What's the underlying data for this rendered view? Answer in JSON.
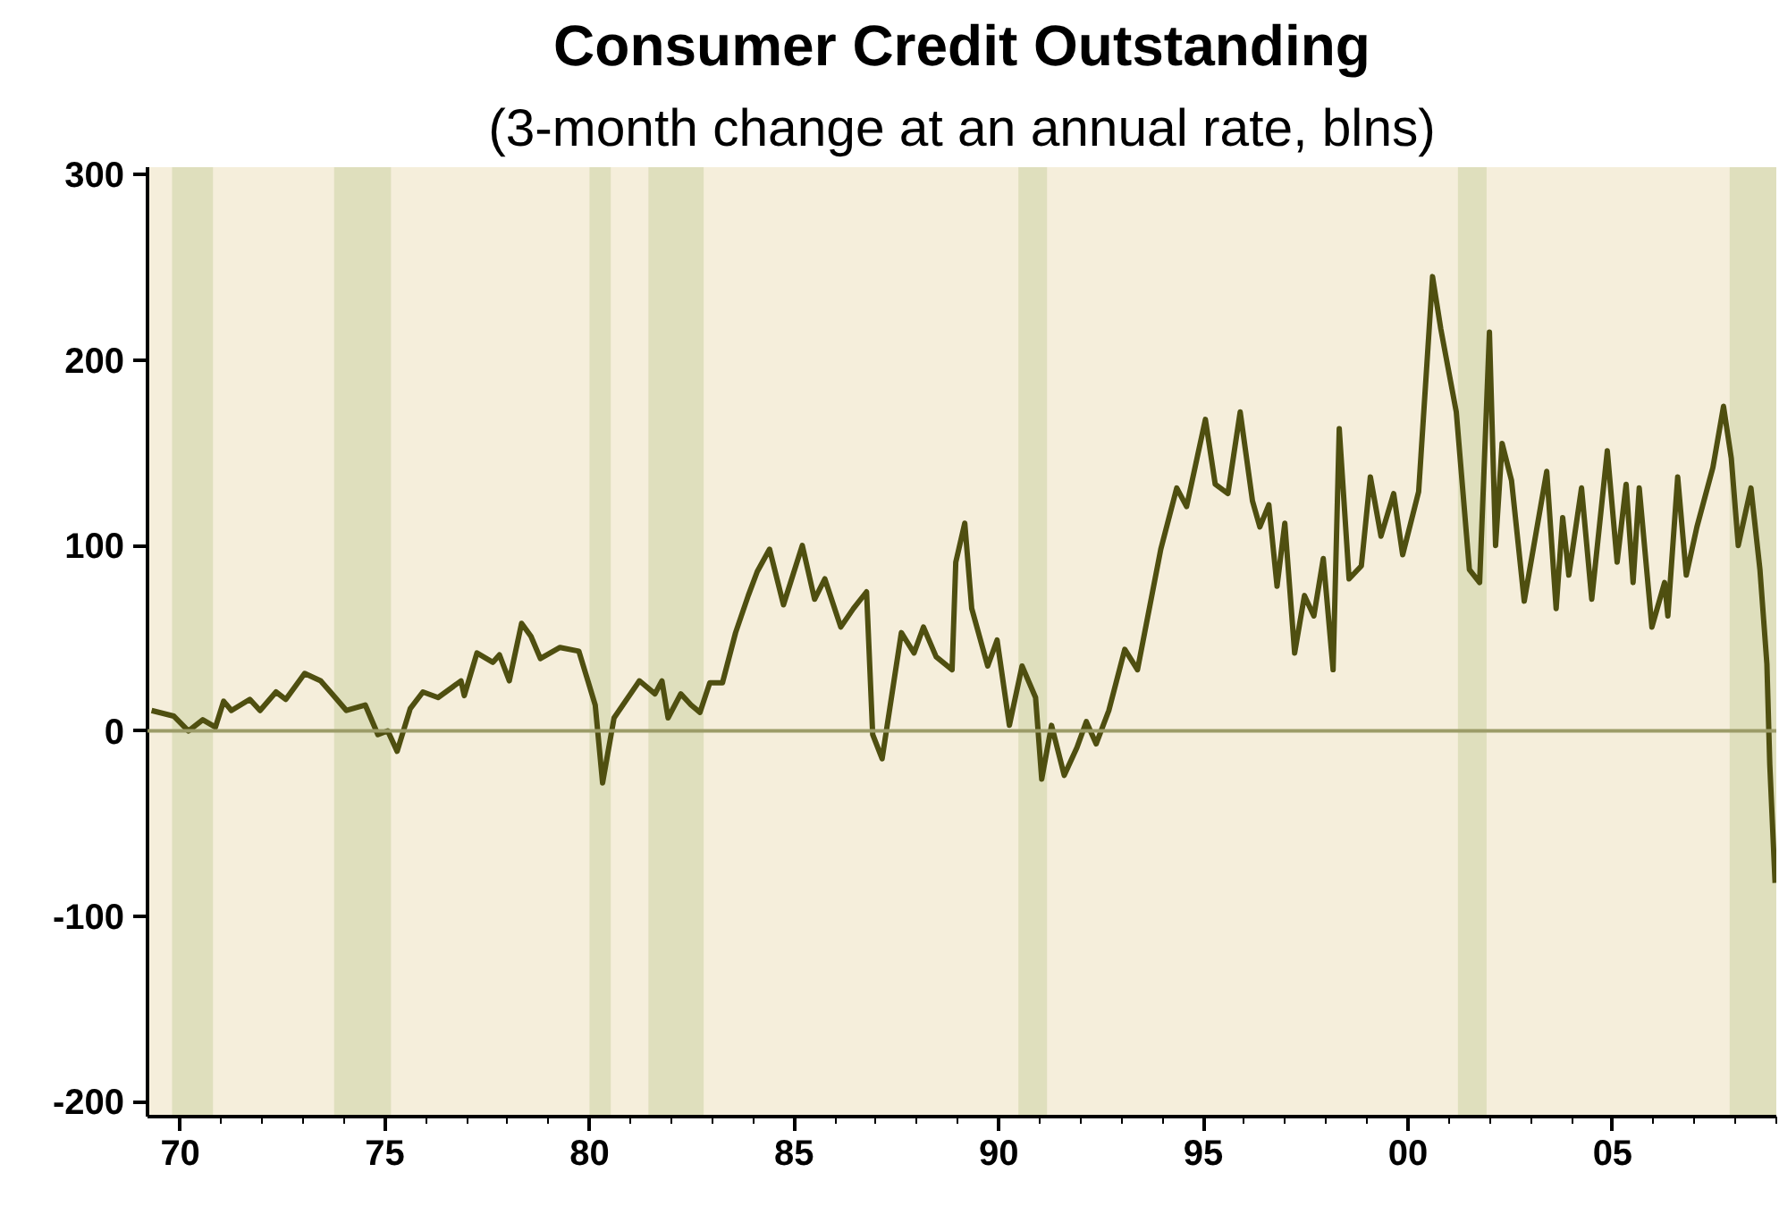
{
  "chart_data": {
    "type": "line",
    "title": "Consumer Credit Outstanding",
    "subtitle": "(3-month change at an annual rate, blns)",
    "x": [
      1969.3,
      1969.84,
      1970.2,
      1970.55,
      1970.86,
      1971.06,
      1971.25,
      1971.7,
      1971.95,
      1972.34,
      1972.58,
      1973.04,
      1973.43,
      1973.67,
      1974.06,
      1974.52,
      1974.83,
      1975.07,
      1975.3,
      1975.62,
      1975.93,
      1976.3,
      1976.86,
      1976.94,
      1977.25,
      1977.64,
      1977.8,
      1978.04,
      1978.34,
      1978.57,
      1978.8,
      1979.28,
      1979.74,
      1980.14,
      1980.32,
      1980.6,
      1981.22,
      1981.6,
      1981.77,
      1981.92,
      1982.23,
      1982.48,
      1982.7,
      1982.94,
      1983.25,
      1983.57,
      1983.88,
      1984.1,
      1984.4,
      1984.74,
      1985.2,
      1985.5,
      1985.75,
      1986.14,
      1986.45,
      1986.77,
      1986.92,
      1987.15,
      1987.62,
      1987.93,
      1988.16,
      1988.47,
      1988.86,
      1988.95,
      1989.17,
      1989.34,
      1989.73,
      1989.96,
      1990.26,
      1990.57,
      1990.9,
      1991.05,
      1991.29,
      1991.6,
      1991.91,
      1992.14,
      1992.38,
      1992.69,
      1993.08,
      1993.39,
      1993.96,
      1994.35,
      1994.59,
      1995.05,
      1995.29,
      1995.6,
      1995.9,
      1996.2,
      1996.38,
      1996.6,
      1996.8,
      1996.99,
      1997.23,
      1997.47,
      1997.7,
      1997.93,
      1998.17,
      1998.32,
      1998.56,
      1998.86,
      1999.08,
      1999.34,
      1999.65,
      1999.87,
      2000.26,
      2000.6,
      2000.8,
      2001.18,
      2001.5,
      2001.75,
      2001.99,
      2002.14,
      2002.3,
      2002.53,
      2002.84,
      2003.39,
      2003.62,
      2003.78,
      2003.93,
      2004.24,
      2004.49,
      2004.87,
      2005.11,
      2005.33,
      2005.5,
      2005.65,
      2005.96,
      2006.27,
      2006.35,
      2006.59,
      2006.8,
      2007.06,
      2007.45,
      2007.71,
      2007.9,
      2008.07,
      2008.38,
      2008.6,
      2008.77,
      2008.84,
      2008.97
    ],
    "series": [
      {
        "color": "#4f4f10",
        "values": [
          11,
          8,
          0,
          6,
          2,
          16,
          11,
          17,
          11,
          21,
          17,
          31,
          27,
          21,
          11,
          14,
          -2,
          0,
          -11,
          12,
          21,
          18,
          27,
          19,
          42,
          37,
          41,
          27,
          58,
          51,
          39,
          45,
          43,
          14,
          -28,
          7,
          27,
          20,
          27,
          7,
          20,
          14,
          10,
          26,
          26,
          53,
          73,
          86,
          98,
          68,
          100,
          71,
          82,
          56,
          66,
          75,
          -2,
          -15,
          53,
          42,
          56,
          40,
          33,
          91,
          112,
          66,
          35,
          49,
          3,
          35,
          18,
          -26,
          3,
          -24,
          -9,
          5,
          -7,
          11,
          44,
          33,
          98,
          131,
          121,
          168,
          133,
          128,
          172,
          124,
          110,
          122,
          78,
          112,
          42,
          73,
          62,
          93,
          33,
          163,
          82,
          89,
          137,
          105,
          128,
          95,
          129,
          245,
          217,
          172,
          87,
          80,
          215,
          100,
          155,
          135,
          70,
          140,
          66,
          115,
          84,
          131,
          71,
          151,
          91,
          133,
          80,
          131,
          56,
          80,
          62,
          137,
          84,
          110,
          142,
          175,
          147,
          100,
          131,
          87,
          36,
          -18,
          -82
        ]
      }
    ],
    "xlim": [
      1969.2,
      2009.0
    ],
    "ylim": [
      -208,
      304
    ],
    "xticks": [
      {
        "value": 1970,
        "label": "70"
      },
      {
        "value": 1975,
        "label": "75"
      },
      {
        "value": 1980,
        "label": "80"
      },
      {
        "value": 1985,
        "label": "85"
      },
      {
        "value": 1990,
        "label": "90"
      },
      {
        "value": 1995,
        "label": "95"
      },
      {
        "value": 2000,
        "label": "00"
      },
      {
        "value": 2005,
        "label": "05"
      }
    ],
    "yticks": [
      -200,
      -100,
      0,
      100,
      200,
      300
    ],
    "ref_lines": [
      {
        "axis": "y",
        "value": 0,
        "color": "#9c9c68"
      }
    ],
    "bands": [
      {
        "axis": "x",
        "from": 1969.8,
        "to": 1970.8,
        "color": "#dfdfbd"
      },
      {
        "axis": "x",
        "from": 1973.76,
        "to": 1975.15,
        "color": "#dfdfbd"
      },
      {
        "axis": "x",
        "from": 1980.0,
        "to": 1980.52,
        "color": "#dfdfbd"
      },
      {
        "axis": "x",
        "from": 1981.44,
        "to": 1982.79,
        "color": "#dfdfbd"
      },
      {
        "axis": "x",
        "from": 1990.48,
        "to": 1991.18,
        "color": "#dfdfbd"
      },
      {
        "axis": "x",
        "from": 2001.22,
        "to": 2001.92,
        "color": "#dfdfbd"
      },
      {
        "axis": "x",
        "from": 2007.86,
        "to": 2009.0,
        "color": "#dfdfbd"
      }
    ],
    "grid": false,
    "marker": "none",
    "line_style": "solid"
  }
}
